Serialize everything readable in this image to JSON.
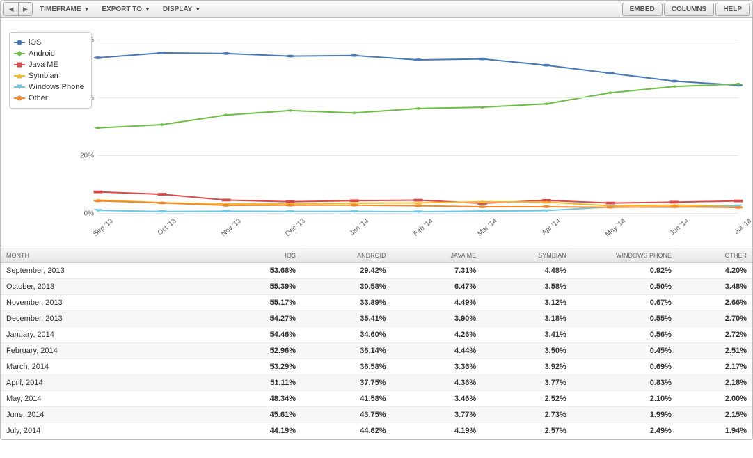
{
  "toolbar": {
    "timeframe_label": "TIMEFRAME",
    "export_label": "EXPORT TO",
    "display_label": "DISPLAY",
    "embed_label": "EMBED",
    "columns_label": "COLUMNS",
    "help_label": "HELP"
  },
  "chart": {
    "type": "line",
    "ylim": [
      0,
      65
    ],
    "ytick_step": 20,
    "ytick_labels": [
      "0%",
      "20%",
      "40%",
      "60%"
    ],
    "x_labels": [
      "Sep '13",
      "Oct '13",
      "Nov '13",
      "Dec '13",
      "Jan '14",
      "Feb '14",
      "Mar '14",
      "Apr '14",
      "May '14",
      "Jun '14",
      "Jul '14"
    ],
    "background_color": "#ffffff",
    "grid_color": "#e8e8e8",
    "label_fontsize": 10,
    "line_width": 2,
    "marker_size": 7,
    "series": [
      {
        "name": "iOS",
        "color": "#4a79b6",
        "marker": "circle",
        "values": [
          53.68,
          55.39,
          55.17,
          54.27,
          54.46,
          52.96,
          53.29,
          51.11,
          48.34,
          45.61,
          44.19
        ]
      },
      {
        "name": "Android",
        "color": "#6fbd45",
        "marker": "diamond",
        "values": [
          29.42,
          30.58,
          33.89,
          35.41,
          34.6,
          36.14,
          36.58,
          37.75,
          41.58,
          43.75,
          44.62
        ]
      },
      {
        "name": "Java ME",
        "color": "#d84a4a",
        "marker": "square",
        "values": [
          7.31,
          6.47,
          4.49,
          3.9,
          4.26,
          4.44,
          3.36,
          4.36,
          3.46,
          3.77,
          4.19
        ]
      },
      {
        "name": "Symbian",
        "color": "#f2b92e",
        "marker": "tri-down",
        "values": [
          4.48,
          3.58,
          3.12,
          3.18,
          3.41,
          3.5,
          3.92,
          3.77,
          2.52,
          2.73,
          2.57
        ]
      },
      {
        "name": "Windows Phone",
        "color": "#6fc8e2",
        "marker": "tri-up",
        "values": [
          0.92,
          0.5,
          0.67,
          0.55,
          0.56,
          0.45,
          0.69,
          0.83,
          2.1,
          1.99,
          2.49
        ]
      },
      {
        "name": "Other",
        "color": "#ef8a2f",
        "marker": "circle",
        "values": [
          4.2,
          3.48,
          2.66,
          2.7,
          2.72,
          2.51,
          2.17,
          2.18,
          2.0,
          2.15,
          1.94
        ]
      }
    ]
  },
  "table": {
    "columns": [
      "MONTH",
      "IOS",
      "ANDROID",
      "JAVA ME",
      "SYMBIAN",
      "WINDOWS PHONE",
      "OTHER"
    ],
    "column_widths_pct": [
      28,
      12,
      12,
      12,
      12,
      14,
      10
    ],
    "rows": [
      [
        "September, 2013",
        "53.68%",
        "29.42%",
        "7.31%",
        "4.48%",
        "0.92%",
        "4.20%"
      ],
      [
        "October, 2013",
        "55.39%",
        "30.58%",
        "6.47%",
        "3.58%",
        "0.50%",
        "3.48%"
      ],
      [
        "November, 2013",
        "55.17%",
        "33.89%",
        "4.49%",
        "3.12%",
        "0.67%",
        "2.66%"
      ],
      [
        "December, 2013",
        "54.27%",
        "35.41%",
        "3.90%",
        "3.18%",
        "0.55%",
        "2.70%"
      ],
      [
        "January, 2014",
        "54.46%",
        "34.60%",
        "4.26%",
        "3.41%",
        "0.56%",
        "2.72%"
      ],
      [
        "February, 2014",
        "52.96%",
        "36.14%",
        "4.44%",
        "3.50%",
        "0.45%",
        "2.51%"
      ],
      [
        "March, 2014",
        "53.29%",
        "36.58%",
        "3.36%",
        "3.92%",
        "0.69%",
        "2.17%"
      ],
      [
        "April, 2014",
        "51.11%",
        "37.75%",
        "4.36%",
        "3.77%",
        "0.83%",
        "2.18%"
      ],
      [
        "May, 2014",
        "48.34%",
        "41.58%",
        "3.46%",
        "2.52%",
        "2.10%",
        "2.00%"
      ],
      [
        "June, 2014",
        "45.61%",
        "43.75%",
        "3.77%",
        "2.73%",
        "1.99%",
        "2.15%"
      ],
      [
        "July, 2014",
        "44.19%",
        "44.62%",
        "4.19%",
        "2.57%",
        "2.49%",
        "1.94%"
      ]
    ]
  }
}
